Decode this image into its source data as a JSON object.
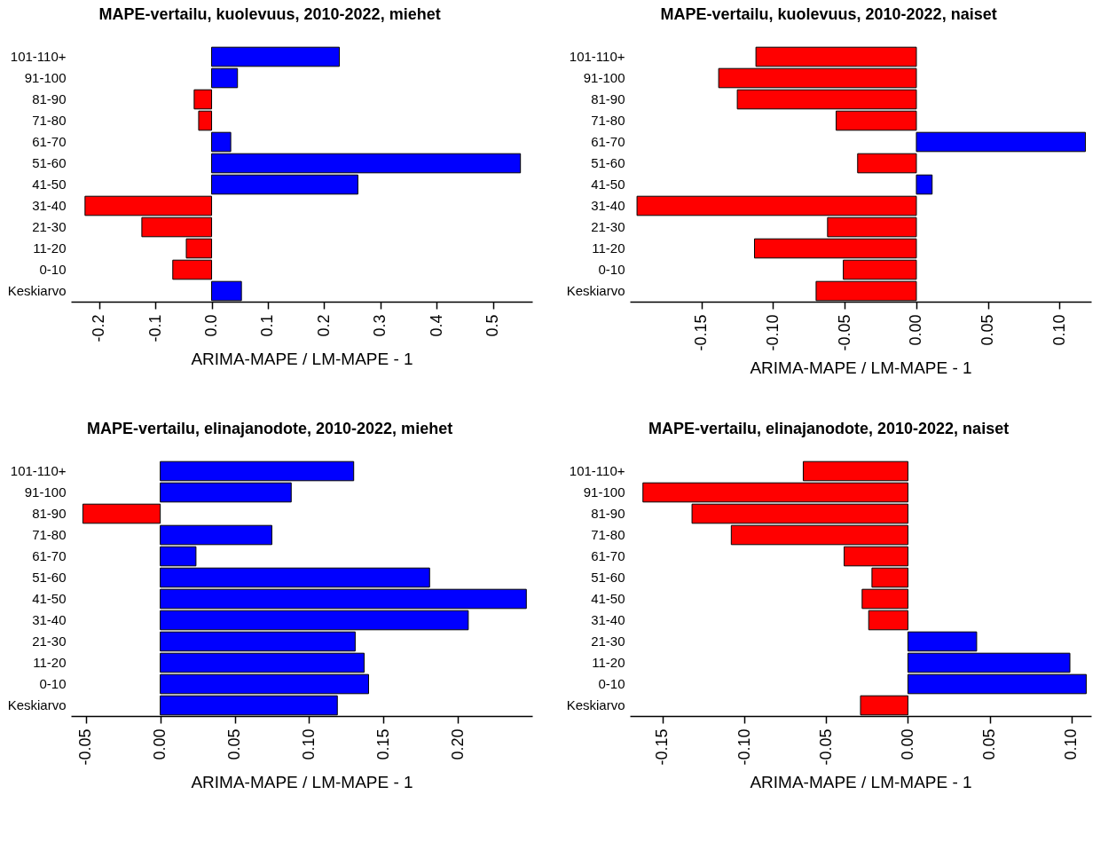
{
  "chart_data": [
    {
      "type": "bar",
      "orientation": "horizontal",
      "title": "MAPE-vertailu, kuolevuus, 2010-2022, miehet",
      "xlabel": "ARIMA-MAPE / LM-MAPE - 1",
      "categories": [
        "101-110+",
        "91-100",
        "81-90",
        "71-80",
        "61-70",
        "51-60",
        "41-50",
        "31-40",
        "21-30",
        "11-20",
        "0-10",
        "Keskiarvo"
      ],
      "values": [
        0.227,
        0.046,
        -0.031,
        -0.023,
        0.034,
        0.549,
        0.26,
        -0.225,
        -0.124,
        -0.045,
        -0.069,
        0.053
      ],
      "colors": [
        "#0000ff",
        "#0000ff",
        "#ff0000",
        "#ff0000",
        "#0000ff",
        "#0000ff",
        "#0000ff",
        "#ff0000",
        "#ff0000",
        "#ff0000",
        "#ff0000",
        "#0000ff"
      ],
      "xlim": [
        -0.25,
        0.57
      ],
      "xticks": [
        -0.2,
        -0.1,
        {
          "value": 0,
          "label": "0.0"
        },
        0.1,
        0.2,
        0.3,
        0.4,
        0.5
      ]
    },
    {
      "type": "bar",
      "orientation": "horizontal",
      "title": "MAPE-vertailu, kuolevuus, 2010-2022, naiset",
      "xlabel": "ARIMA-MAPE / LM-MAPE - 1",
      "categories": [
        "101-110+",
        "91-100",
        "81-90",
        "71-80",
        "61-70",
        "51-60",
        "41-50",
        "31-40",
        "21-30",
        "11-20",
        "0-10",
        "Keskiarvo"
      ],
      "values": [
        -0.112,
        -0.138,
        -0.125,
        -0.056,
        0.118,
        -0.041,
        0.011,
        -0.195,
        -0.062,
        -0.113,
        -0.051,
        -0.07
      ],
      "colors": [
        "#ff0000",
        "#ff0000",
        "#ff0000",
        "#ff0000",
        "#0000ff",
        "#ff0000",
        "#0000ff",
        "#ff0000",
        "#ff0000",
        "#ff0000",
        "#ff0000",
        "#ff0000"
      ],
      "xlim": [
        -0.2,
        0.122
      ],
      "xticks": [
        -0.15,
        {
          "value": -0.1,
          "label": "-0.10"
        },
        -0.05,
        {
          "value": 0,
          "label": "0.00"
        },
        0.05,
        {
          "value": 0.1,
          "label": "0.10"
        }
      ]
    },
    {
      "type": "bar",
      "orientation": "horizontal",
      "title": "MAPE-vertailu, elinajanodote, 2010-2022, miehet",
      "xlabel": "ARIMA-MAPE / LM-MAPE - 1",
      "categories": [
        "101-110+",
        "91-100",
        "81-90",
        "71-80",
        "61-70",
        "51-60",
        "41-50",
        "31-40",
        "21-30",
        "11-20",
        "0-10",
        "Keskiarvo"
      ],
      "values": [
        0.13,
        0.088,
        -0.052,
        0.075,
        0.024,
        0.181,
        0.246,
        0.207,
        0.131,
        0.137,
        0.14,
        0.119
      ],
      "colors": [
        "#0000ff",
        "#0000ff",
        "#ff0000",
        "#0000ff",
        "#0000ff",
        "#0000ff",
        "#0000ff",
        "#0000ff",
        "#0000ff",
        "#0000ff",
        "#0000ff",
        "#0000ff"
      ],
      "xlim": [
        -0.06,
        0.25
      ],
      "xticks": [
        -0.05,
        {
          "value": 0,
          "label": "0.00"
        },
        0.05,
        {
          "value": 0.1,
          "label": "0.10"
        },
        0.15,
        {
          "value": 0.2,
          "label": "0.20"
        }
      ]
    },
    {
      "type": "bar",
      "orientation": "horizontal",
      "title": "MAPE-vertailu, elinajanodote, 2010-2022, naiset",
      "xlabel": "ARIMA-MAPE / LM-MAPE - 1",
      "categories": [
        "101-110+",
        "91-100",
        "81-90",
        "71-80",
        "61-70",
        "51-60",
        "41-50",
        "31-40",
        "21-30",
        "11-20",
        "0-10",
        "Keskiarvo"
      ],
      "values": [
        -0.064,
        -0.162,
        -0.132,
        -0.108,
        -0.039,
        -0.022,
        -0.028,
        -0.024,
        0.042,
        0.099,
        0.109,
        -0.029
      ],
      "colors": [
        "#ff0000",
        "#ff0000",
        "#ff0000",
        "#ff0000",
        "#ff0000",
        "#ff0000",
        "#ff0000",
        "#ff0000",
        "#0000ff",
        "#0000ff",
        "#0000ff",
        "#ff0000"
      ],
      "xlim": [
        -0.17,
        0.112
      ],
      "xticks": [
        -0.15,
        {
          "value": -0.1,
          "label": "-0.10"
        },
        -0.05,
        {
          "value": 0,
          "label": "0.00"
        },
        0.05,
        {
          "value": 0.1,
          "label": "0.10"
        }
      ]
    }
  ]
}
